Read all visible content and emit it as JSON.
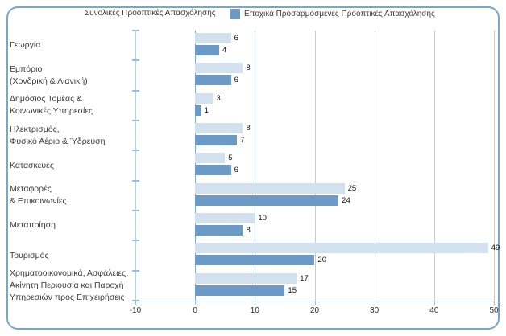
{
  "legend": {
    "items": [
      {
        "label": "Συνολικές Προοπτικές Απασχόλησης",
        "swatch": "none",
        "color": "#d3e1ee"
      },
      {
        "label": "Εποχικά Προσαρμοσμένες Προοπτικές Απασχόλησης",
        "swatch": "square",
        "color": "#6b9ac6"
      }
    ]
  },
  "chart_data": {
    "type": "bar",
    "orientation": "horizontal",
    "title": "",
    "xlabel": "",
    "ylabel": "",
    "categories": [
      [
        "Γεωργία"
      ],
      [
        "Εμπόριο",
        "(Χονδρική & Λιανική)"
      ],
      [
        "Δημόσιος Τομέας &",
        "Κοινωνικές Υπηρεσίες"
      ],
      [
        "Ηλεκτρισμός,",
        "Φυσικό Αέριο & Ύδρευση"
      ],
      [
        "Κατασκευές"
      ],
      [
        "Μεταφορές",
        "& Επικοινωνίες"
      ],
      [
        "Μεταποίηση"
      ],
      [
        "Τουρισμός"
      ],
      [
        "Χρηματοοικονομικά, Ασφάλειες,",
        "Ακίνητη Περιουσία και Παροχή",
        "Υπηρεσιών προς Επιχειρήσεις"
      ]
    ],
    "series": [
      {
        "name": "Συνολικές Προοπτικές Απασχόλησης",
        "color": "#d3e1ee",
        "values": [
          6,
          8,
          3,
          8,
          5,
          25,
          10,
          49,
          17
        ]
      },
      {
        "name": "Εποχικά Προσαρμοσμένες Προοπτικές Απασχόλησης",
        "color": "#6b9ac6",
        "values": [
          4,
          6,
          1,
          7,
          6,
          24,
          8,
          20,
          15
        ]
      }
    ],
    "xlim": [
      -10,
      50
    ],
    "x_ticks": [
      "-10",
      "0",
      "10",
      "20",
      "30",
      "40",
      "50"
    ],
    "grid": "vertical",
    "legend_position": "top",
    "value_labels": true
  },
  "colors": {
    "frame_border": "#7aa6cc",
    "gridline": "#b9d1e7",
    "zero_line": "#84abd0",
    "axis": "#9dbcd9",
    "bar_light": "#d3e1ee",
    "bar_dark": "#6b9ac6",
    "text": "#3c3c3c",
    "value_text": "#111111",
    "tick_label": "#2e2e2e"
  }
}
